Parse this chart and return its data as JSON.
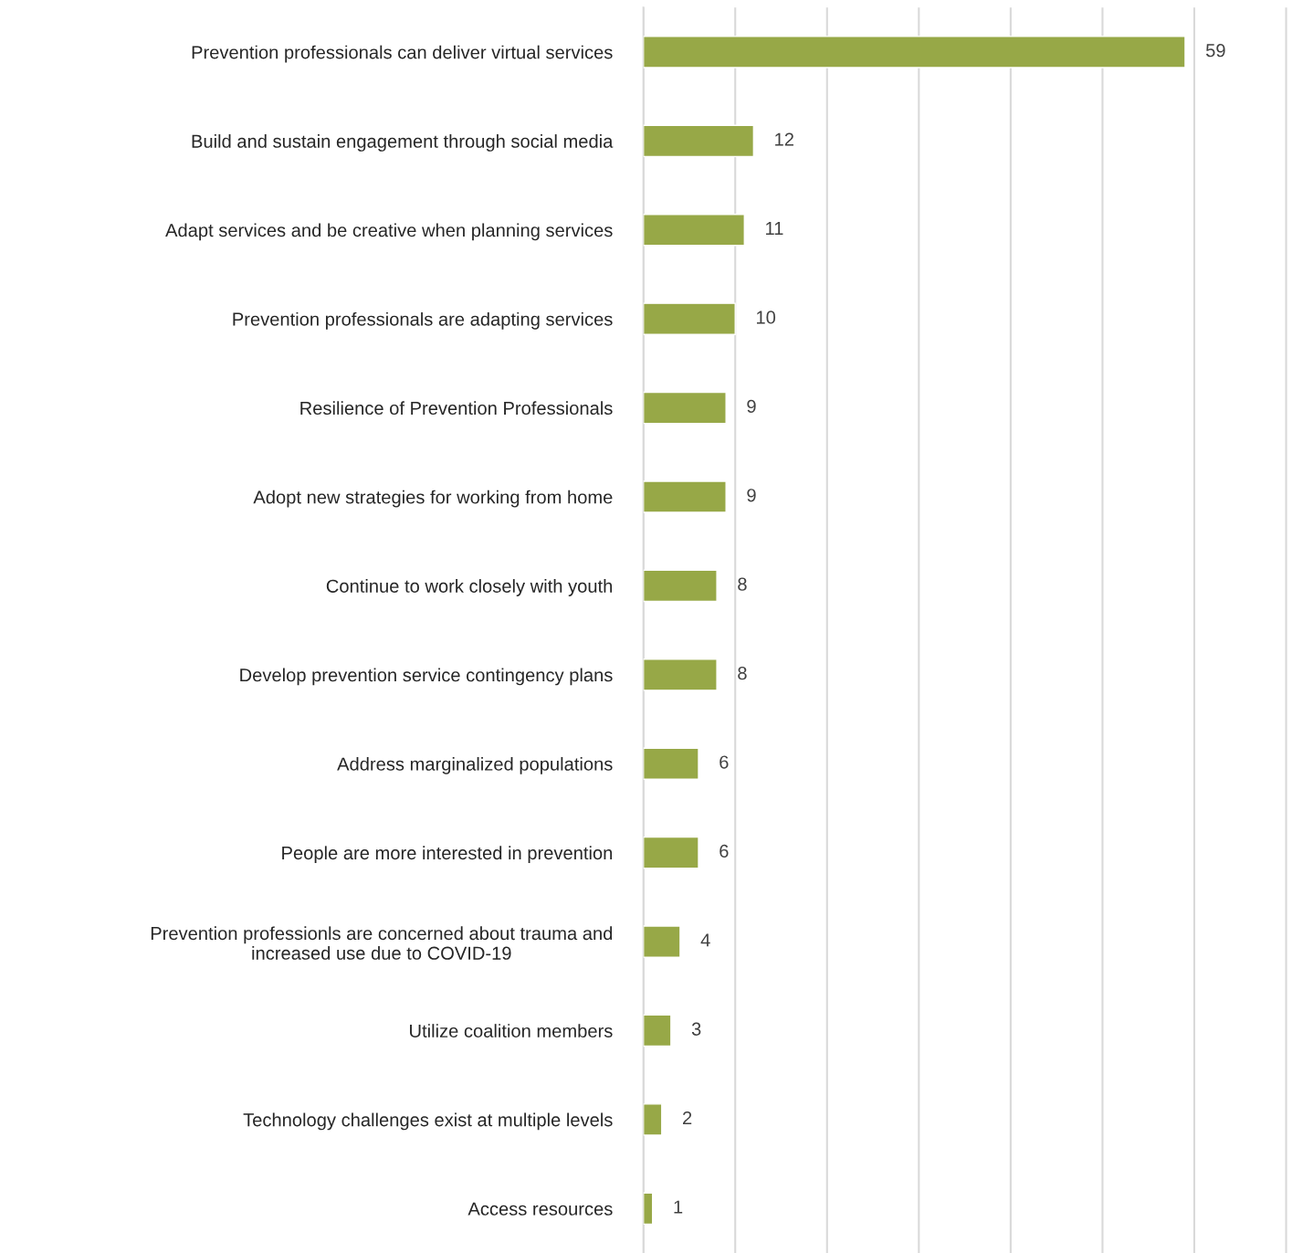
{
  "chart_data": {
    "type": "bar",
    "orientation": "horizontal",
    "categories": [
      "Prevention professionals can deliver virtual services",
      "Build and sustain engagement through social media",
      "Adapt services and be creative when planning services",
      "Prevention professionals are adapting services",
      "Resilience of Prevention Professionals",
      "Adopt new strategies for working from home",
      "Continue to work closely with youth",
      "Develop prevention service contingency plans",
      "Address marginalized populations",
      "People are more interested in prevention",
      "Prevention professionls are concerned about trauma and\nincreased use due to COVID-19",
      "Utilize coalition members",
      "Technology challenges exist at multiple levels",
      "Access resources"
    ],
    "values": [
      59,
      12,
      11,
      10,
      9,
      9,
      8,
      8,
      6,
      6,
      4,
      3,
      2,
      1
    ],
    "color": "#97a847",
    "xlim": [
      0,
      70.5
    ],
    "xticks": [
      {
        "value": 0,
        "label": null
      },
      {
        "value": 10,
        "label": null
      },
      {
        "value": 20,
        "label": null
      },
      {
        "value": 30,
        "label": null
      },
      {
        "value": 40,
        "label": null
      },
      {
        "value": 50,
        "label": null
      },
      {
        "value": 60,
        "label": null
      },
      {
        "value": 70,
        "label": null
      }
    ],
    "grid": "x",
    "tick_labels": "y",
    "data_labels": true
  }
}
